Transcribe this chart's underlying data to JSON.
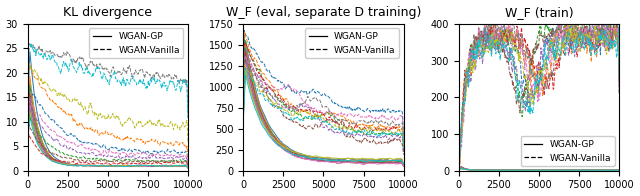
{
  "titles": [
    "KL divergence",
    "W_F (eval, separate D training)",
    "W_F (train)"
  ],
  "xlim": [
    0,
    10000
  ],
  "kl_ylim": [
    0,
    30
  ],
  "wf_eval_ylim": [
    0,
    1750
  ],
  "wf_train_ylim": [
    0,
    400
  ],
  "n_steps": 300,
  "colors": [
    "#1f77b4",
    "#ff7f0e",
    "#2ca02c",
    "#d62728",
    "#9467bd",
    "#8c564b",
    "#e377c2",
    "#7f7f7f",
    "#bcbd22",
    "#17becf"
  ],
  "legend_solid": "WGAN-GP",
  "legend_dashed": "WGAN-Vanilla",
  "figsize": [
    6.4,
    1.96
  ],
  "dpi": 100
}
